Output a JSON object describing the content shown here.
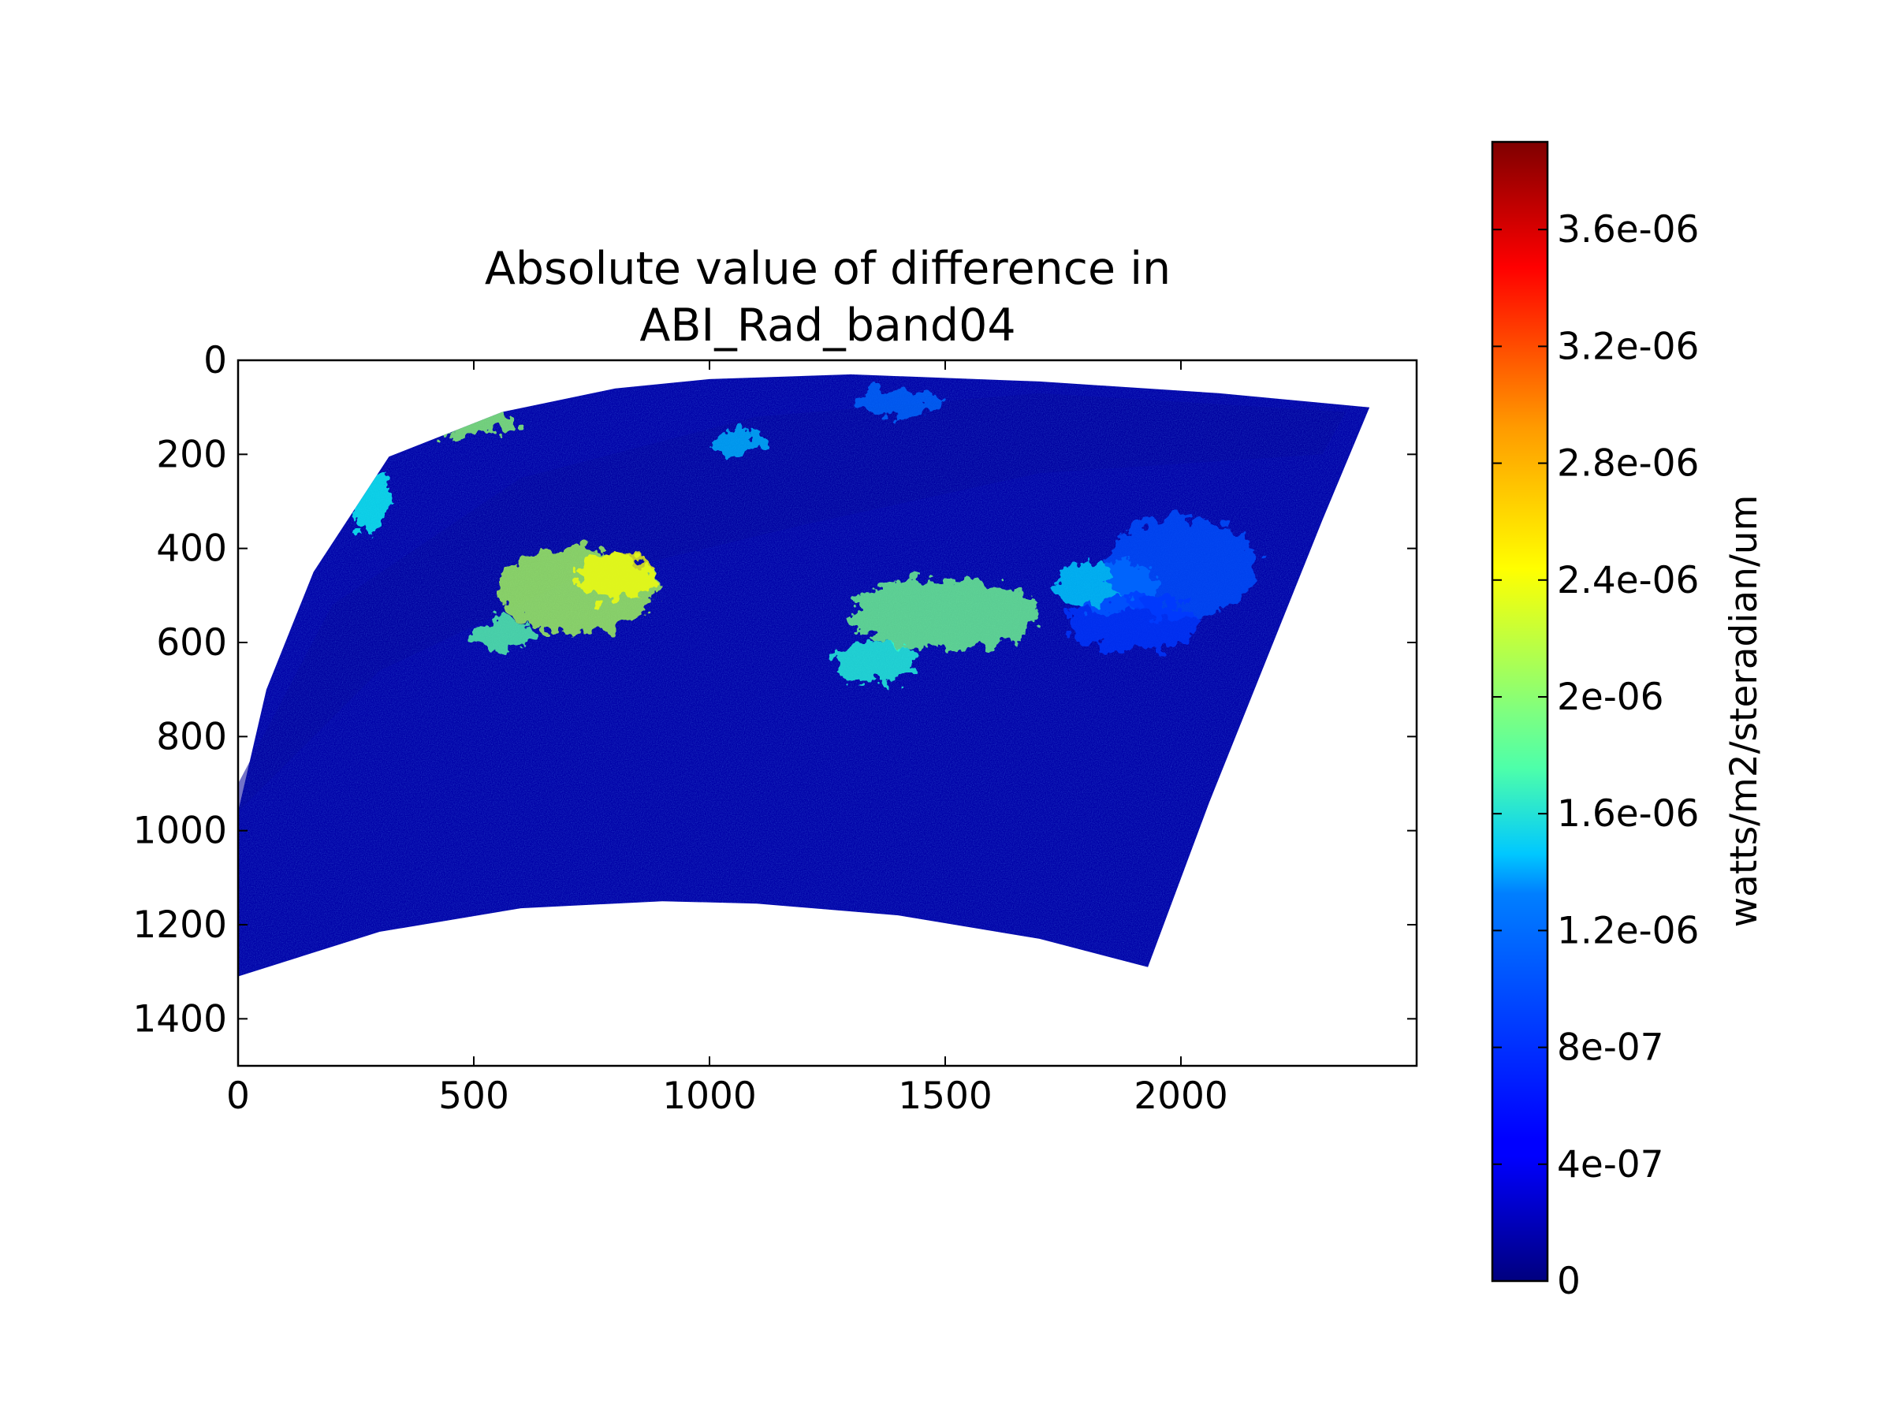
{
  "chart_data": {
    "type": "heatmap",
    "title_lines": [
      "Absolute value of difference in",
      "ABI_Rad_band04"
    ],
    "xlabel": "",
    "ylabel": "",
    "xlim": [
      0,
      2500
    ],
    "ylim": [
      1500,
      0
    ],
    "y_inverted": true,
    "x_ticks": [
      0,
      500,
      1000,
      1500,
      2000
    ],
    "x_tick_labels": [
      "0",
      "500",
      "1000",
      "1500",
      "2000"
    ],
    "y_ticks": [
      0,
      200,
      400,
      600,
      800,
      1000,
      1200,
      1400
    ],
    "y_tick_labels": [
      "0",
      "200",
      "400",
      "600",
      "800",
      "1000",
      "1200",
      "1400"
    ],
    "grid": false,
    "colormap": "jet",
    "colorbar": {
      "label": "watts/m2/steradian/um",
      "range": [
        0,
        3.9e-06
      ],
      "ticks": [
        0,
        4e-07,
        8e-07,
        1.2e-06,
        1.6e-06,
        2e-06,
        2.4e-06,
        2.8e-06,
        3.2e-06,
        3.6e-06
      ],
      "tick_labels": [
        "0",
        "4e-07",
        "8e-07",
        "1.2e-06",
        "1.6e-06",
        "2e-06",
        "2.4e-06",
        "2.8e-06",
        "3.2e-06",
        "3.6e-06"
      ],
      "placement": "right"
    },
    "data_region": {
      "description_outline": [
        [
          320,
          205
        ],
        [
          560,
          110
        ],
        [
          800,
          60
        ],
        [
          1000,
          40
        ],
        [
          1300,
          30
        ],
        [
          1700,
          45
        ],
        [
          2080,
          70
        ],
        [
          2400,
          100
        ],
        [
          2300,
          340
        ],
        [
          2180,
          640
        ],
        [
          2060,
          940
        ],
        [
          1930,
          1290
        ],
        [
          1700,
          1230
        ],
        [
          1400,
          1180
        ],
        [
          1100,
          1155
        ],
        [
          900,
          1150
        ],
        [
          600,
          1165
        ],
        [
          300,
          1215
        ],
        [
          0,
          1310
        ],
        [
          0,
          960
        ],
        [
          60,
          700
        ],
        [
          160,
          450
        ],
        [
          320,
          205
        ]
      ],
      "background_level": 1.5e-07,
      "patches": [
        {
          "x": 720,
          "y": 490,
          "rx": 170,
          "ry": 90,
          "level": 2.1e-06
        },
        {
          "x": 800,
          "y": 460,
          "rx": 80,
          "ry": 50,
          "level": 2.4e-06
        },
        {
          "x": 1500,
          "y": 540,
          "rx": 200,
          "ry": 75,
          "level": 1.9e-06
        },
        {
          "x": 1840,
          "y": 480,
          "rx": 110,
          "ry": 55,
          "level": 1.3e-06
        },
        {
          "x": 2000,
          "y": 440,
          "rx": 160,
          "ry": 110,
          "level": 8e-07
        },
        {
          "x": 1350,
          "y": 640,
          "rx": 90,
          "ry": 45,
          "level": 1.6e-06
        },
        {
          "x": 560,
          "y": 580,
          "rx": 60,
          "ry": 35,
          "level": 1.8e-06
        },
        {
          "x": 450,
          "y": 130,
          "rx": 140,
          "ry": 30,
          "level": 2e-06
        },
        {
          "x": 280,
          "y": 300,
          "rx": 40,
          "ry": 70,
          "level": 1.5e-06
        },
        {
          "x": 1060,
          "y": 175,
          "rx": 60,
          "ry": 25,
          "level": 1.2e-06
        },
        {
          "x": 1400,
          "y": 90,
          "rx": 90,
          "ry": 30,
          "level": 9e-07
        },
        {
          "x": 1900,
          "y": 560,
          "rx": 140,
          "ry": 60,
          "level": 7e-07
        }
      ]
    }
  },
  "colors": {
    "axes_edge": "#000000",
    "background": "#ffffff",
    "jet_stops": [
      "#00007f",
      "#0000ff",
      "#007fff",
      "#00ffff",
      "#7fff7f",
      "#ffff00",
      "#ff7f00",
      "#ff0000",
      "#7f0000"
    ]
  }
}
